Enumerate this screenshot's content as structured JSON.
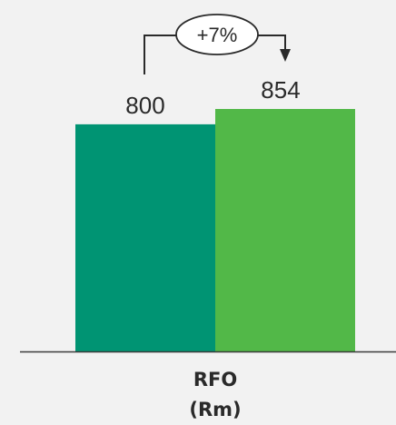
{
  "chart_data": {
    "type": "bar",
    "categories": [
      "RFO (Rm)"
    ],
    "category_lines": [
      "RFO",
      "(Rm)"
    ],
    "series": [
      {
        "values": [
          800
        ],
        "color": "#009473"
      },
      {
        "values": [
          854
        ],
        "color": "#52b848"
      }
    ],
    "data_labels": [
      "800",
      "854"
    ],
    "annotation": "+7%",
    "ylim": [
      0,
      854
    ],
    "grid": false,
    "legend": "none"
  }
}
